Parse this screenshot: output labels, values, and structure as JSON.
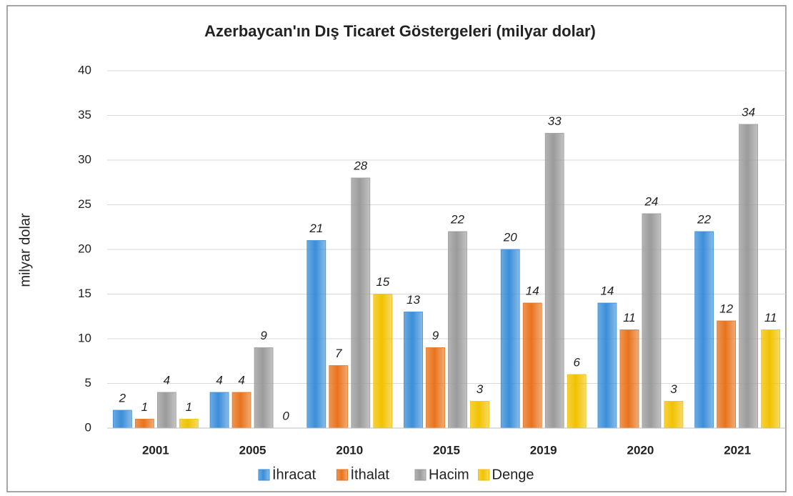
{
  "chart_data": {
    "type": "bar",
    "title": "Azerbaycan'ın Dış Ticaret Göstergeleri  (milyar dolar)",
    "y_label": "milyar dolar",
    "categories": [
      "2001",
      "2005",
      "2010",
      "2015",
      "2019",
      "2020",
      "2021"
    ],
    "series": [
      {
        "name": "İhracat",
        "color": "#3b8ed8",
        "values": [
          2,
          4,
          21,
          13,
          20,
          14,
          22
        ]
      },
      {
        "name": "İthalat",
        "color": "#e8731c",
        "values": [
          1,
          4,
          7,
          9,
          14,
          11,
          12
        ]
      },
      {
        "name": "Hacim",
        "color": "#9b9b9b",
        "values": [
          4,
          9,
          28,
          22,
          33,
          24,
          34
        ]
      },
      {
        "name": "Denge",
        "color": "#f2c200",
        "values": [
          1,
          0,
          15,
          3,
          6,
          3,
          11
        ]
      }
    ],
    "ylim": [
      0,
      40
    ],
    "yticks": [
      0,
      5,
      10,
      15,
      20,
      25,
      30,
      35,
      40
    ],
    "grid": true,
    "legend": "bottom"
  }
}
